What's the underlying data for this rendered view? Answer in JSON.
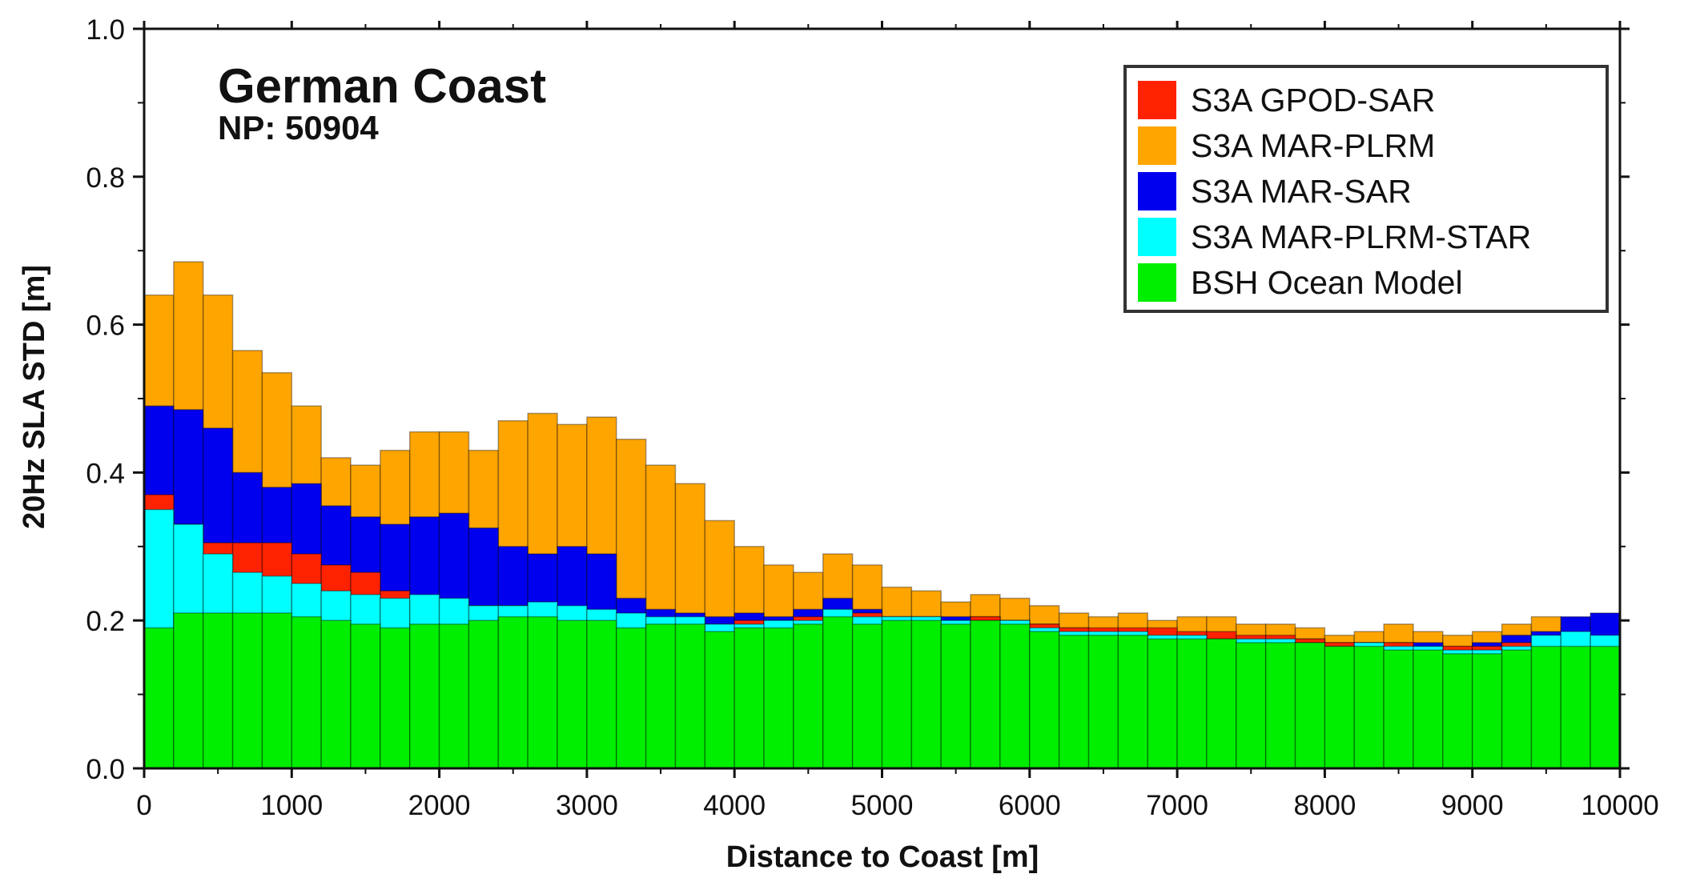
{
  "chart_data": {
    "type": "bar",
    "stacked": "overlay",
    "title": "German Coast",
    "subtitle": "NP: 50904",
    "xlabel": "Distance to Coast [m]",
    "ylabel": "20Hz SLA STD [m]",
    "xlim": [
      0,
      10000
    ],
    "ylim": [
      0.0,
      1.0
    ],
    "bin_width": 200,
    "x": [
      100,
      300,
      500,
      700,
      900,
      1100,
      1300,
      1500,
      1700,
      1900,
      2100,
      2300,
      2500,
      2700,
      2900,
      3100,
      3300,
      3500,
      3700,
      3900,
      4100,
      4300,
      4500,
      4700,
      4900,
      5100,
      5300,
      5500,
      5700,
      5900,
      6100,
      6300,
      6500,
      6700,
      6900,
      7100,
      7300,
      7500,
      7700,
      7900,
      8100,
      8300,
      8500,
      8700,
      8900,
      9100,
      9300,
      9500,
      9700,
      9900
    ],
    "xticks": [
      "0",
      "1000",
      "2000",
      "3000",
      "4000",
      "5000",
      "6000",
      "7000",
      "8000",
      "9000",
      "10000"
    ],
    "yticks": [
      "0.0",
      "0.2",
      "0.4",
      "0.6",
      "0.8",
      "1.0"
    ],
    "legend_position": "top-right",
    "series": [
      {
        "name": "S3A MAR-PLRM",
        "color": "#ffa500",
        "values": [
          0.64,
          0.685,
          0.64,
          0.565,
          0.535,
          0.49,
          0.42,
          0.41,
          0.43,
          0.455,
          0.455,
          0.43,
          0.47,
          0.48,
          0.465,
          0.475,
          0.445,
          0.41,
          0.385,
          0.335,
          0.3,
          0.275,
          0.265,
          0.29,
          0.275,
          0.245,
          0.24,
          0.225,
          0.235,
          0.23,
          0.22,
          0.21,
          0.205,
          0.21,
          0.2,
          0.205,
          0.205,
          0.195,
          0.195,
          0.19,
          0.18,
          0.185,
          0.195,
          0.185,
          0.18,
          0.185,
          0.195,
          0.205,
          0.19,
          0.195
        ]
      },
      {
        "name": "S3A MAR-SAR",
        "color": "#0000ee",
        "values": [
          0.49,
          0.485,
          0.46,
          0.4,
          0.38,
          0.385,
          0.355,
          0.34,
          0.33,
          0.34,
          0.345,
          0.325,
          0.3,
          0.29,
          0.3,
          0.29,
          0.23,
          0.215,
          0.21,
          0.205,
          0.21,
          0.205,
          0.215,
          0.23,
          0.215,
          0.205,
          0.205,
          0.205,
          0.205,
          0.2,
          0.195,
          0.19,
          0.185,
          0.185,
          0.18,
          0.18,
          0.175,
          0.175,
          0.175,
          0.175,
          0.17,
          0.17,
          0.17,
          0.17,
          0.165,
          0.17,
          0.18,
          0.185,
          0.205,
          0.21
        ]
      },
      {
        "name": "S3A GPOD-SAR",
        "color": "#ff2200",
        "values": [
          0.37,
          0.33,
          0.305,
          0.305,
          0.305,
          0.29,
          0.275,
          0.265,
          0.24,
          0.23,
          0.225,
          0.22,
          0.22,
          0.22,
          0.215,
          0.21,
          0.205,
          0.2,
          0.2,
          0.195,
          0.2,
          0.2,
          0.205,
          0.21,
          0.21,
          0.205,
          0.205,
          0.2,
          0.205,
          0.2,
          0.195,
          0.19,
          0.19,
          0.19,
          0.19,
          0.185,
          0.185,
          0.18,
          0.18,
          0.175,
          0.17,
          0.17,
          0.17,
          0.165,
          0.165,
          0.165,
          0.17,
          0.17,
          0.17,
          0.17
        ]
      },
      {
        "name": "S3A MAR-PLRM-STAR",
        "color": "#00ffff",
        "values": [
          0.35,
          0.33,
          0.29,
          0.265,
          0.26,
          0.25,
          0.24,
          0.235,
          0.23,
          0.235,
          0.23,
          0.22,
          0.22,
          0.225,
          0.22,
          0.215,
          0.21,
          0.205,
          0.205,
          0.195,
          0.195,
          0.2,
          0.2,
          0.215,
          0.205,
          0.205,
          0.205,
          0.2,
          0.2,
          0.2,
          0.19,
          0.185,
          0.185,
          0.185,
          0.18,
          0.18,
          0.175,
          0.175,
          0.175,
          0.17,
          0.165,
          0.17,
          0.165,
          0.165,
          0.16,
          0.16,
          0.165,
          0.18,
          0.185,
          0.18
        ]
      },
      {
        "name": "BSH Ocean Model",
        "color": "#00ee00",
        "values": [
          0.19,
          0.21,
          0.21,
          0.21,
          0.21,
          0.205,
          0.2,
          0.195,
          0.19,
          0.195,
          0.195,
          0.2,
          0.205,
          0.205,
          0.2,
          0.2,
          0.19,
          0.195,
          0.195,
          0.185,
          0.19,
          0.19,
          0.195,
          0.205,
          0.195,
          0.2,
          0.2,
          0.195,
          0.2,
          0.195,
          0.185,
          0.18,
          0.18,
          0.18,
          0.175,
          0.175,
          0.175,
          0.17,
          0.17,
          0.17,
          0.165,
          0.165,
          0.16,
          0.16,
          0.155,
          0.155,
          0.16,
          0.165,
          0.165,
          0.165
        ]
      }
    ],
    "legend_order": [
      "S3A GPOD-SAR",
      "S3A MAR-PLRM",
      "S3A MAR-SAR",
      "S3A MAR-PLRM-STAR",
      "BSH Ocean Model"
    ]
  }
}
